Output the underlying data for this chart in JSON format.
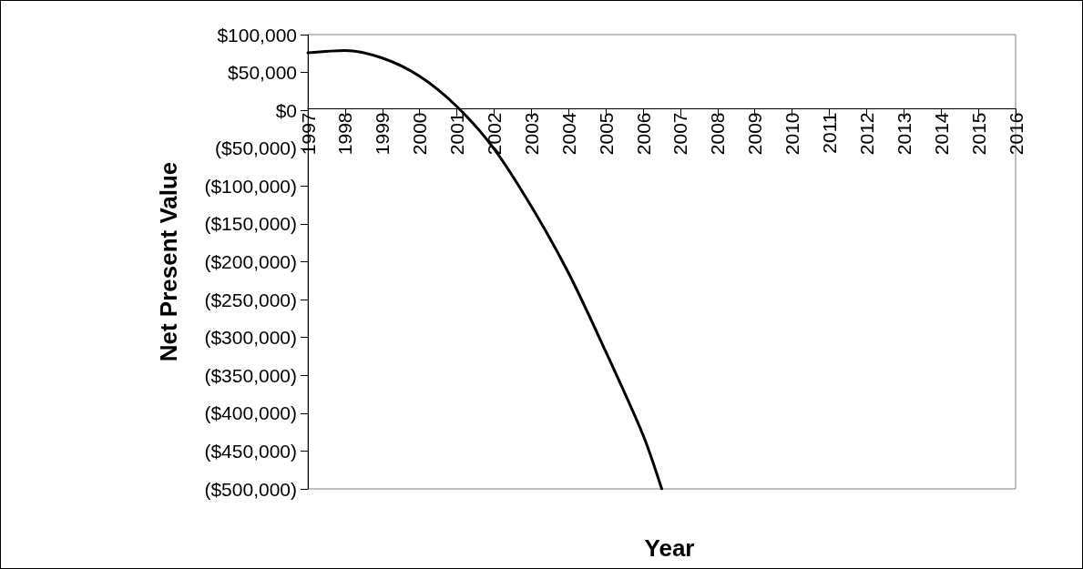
{
  "chart_data": {
    "type": "line",
    "xlabel": "Year",
    "ylabel": "Net Present Value",
    "x": [
      1997,
      1998,
      1999,
      2000,
      2001,
      2002,
      2003,
      2004,
      2005,
      2006,
      2006.5
    ],
    "series": [
      {
        "color": "#000000",
        "values": [
          76000,
          79000,
          69000,
          45000,
          5000,
          -51000,
          -127000,
          -215000,
          -319000,
          -429000,
          -500000
        ]
      }
    ],
    "xlim": [
      1997,
      2016
    ],
    "xticks": [
      1997,
      1998,
      1999,
      2000,
      2001,
      2002,
      2003,
      2004,
      2005,
      2006,
      2007,
      2008,
      2009,
      2010,
      2011,
      2012,
      2013,
      2014,
      2015,
      2016
    ],
    "ylim": [
      -500000,
      100000
    ],
    "yticks": [
      {
        "value": -500000,
        "label": "($500,000)"
      },
      {
        "value": -450000,
        "label": "($450,000)"
      },
      {
        "value": -400000,
        "label": "($400,000)"
      },
      {
        "value": -350000,
        "label": "($350,000)"
      },
      {
        "value": -300000,
        "label": "($300,000)"
      },
      {
        "value": -250000,
        "label": "($250,000)"
      },
      {
        "value": -200000,
        "label": "($200,000)"
      },
      {
        "value": -150000,
        "label": "($150,000)"
      },
      {
        "value": -100000,
        "label": "($100,000)"
      },
      {
        "value": -50000,
        "label": "($50,000)"
      },
      {
        "value": 0,
        "label": "$0"
      },
      {
        "value": 50000,
        "label": "$50,000"
      },
      {
        "value": 100000,
        "label": "$100,000"
      }
    ],
    "grid": false,
    "marker": "none",
    "line_style": "solid"
  }
}
